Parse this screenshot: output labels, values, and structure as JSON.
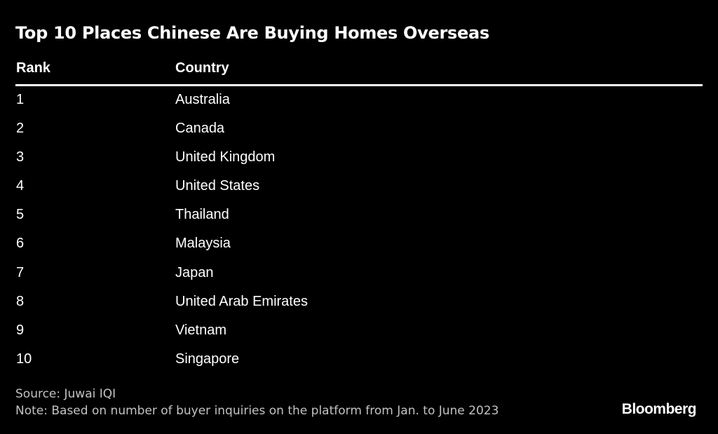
{
  "title": "Top 10 Places Chinese Are Buying Homes Overseas",
  "chart_data": {
    "type": "table",
    "title": "Top 10 Places Chinese Are Buying Homes Overseas",
    "columns": [
      "Rank",
      "Country"
    ],
    "rows": [
      [
        "1",
        "Australia"
      ],
      [
        "2",
        "Canada"
      ],
      [
        "3",
        "United Kingdom"
      ],
      [
        "4",
        "United States"
      ],
      [
        "5",
        "Thailand"
      ],
      [
        "6",
        "Malaysia"
      ],
      [
        "7",
        "Japan"
      ],
      [
        "8",
        "United Arab Emirates"
      ],
      [
        "9",
        "Vietnam"
      ],
      [
        "10",
        "Singapore"
      ]
    ]
  },
  "footer": {
    "source": "Source: Juwai IQI",
    "note": "Note: Based on number of buyer inquiries on the platform from Jan. to June 2023",
    "brand": "Bloomberg"
  },
  "colors": {
    "background": "#000000",
    "text": "#ffffff",
    "footer_text": "#c2c2c2"
  }
}
